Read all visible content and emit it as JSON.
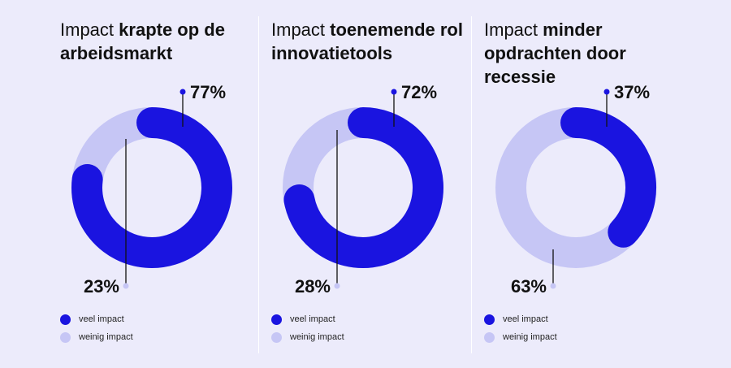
{
  "colors": {
    "background": "#ecebfb",
    "veel": "#1a14e0",
    "weinig": "#c6c6f5",
    "text": "#111111"
  },
  "legend": {
    "veel_label": "veel impact",
    "weinig_label": "weinig impact"
  },
  "chart_data": [
    {
      "type": "pie",
      "title_light": "Impact",
      "title_bold": "krapte op de arbeidsmarkt",
      "labels": [
        "veel impact",
        "weinig impact"
      ],
      "values": [
        77,
        23
      ],
      "value_labels": [
        "77%",
        "23%"
      ]
    },
    {
      "type": "pie",
      "title_light": "Impact",
      "title_bold": "toenemende rol innovatietools",
      "labels": [
        "veel impact",
        "weinig impact"
      ],
      "values": [
        72,
        28
      ],
      "value_labels": [
        "72%",
        "28%"
      ]
    },
    {
      "type": "pie",
      "title_light": "Impact",
      "title_bold": "minder opdrachten door recessie",
      "labels": [
        "veel impact",
        "weinig impact"
      ],
      "values": [
        37,
        63
      ],
      "value_labels": [
        "37%",
        "63%"
      ]
    }
  ]
}
